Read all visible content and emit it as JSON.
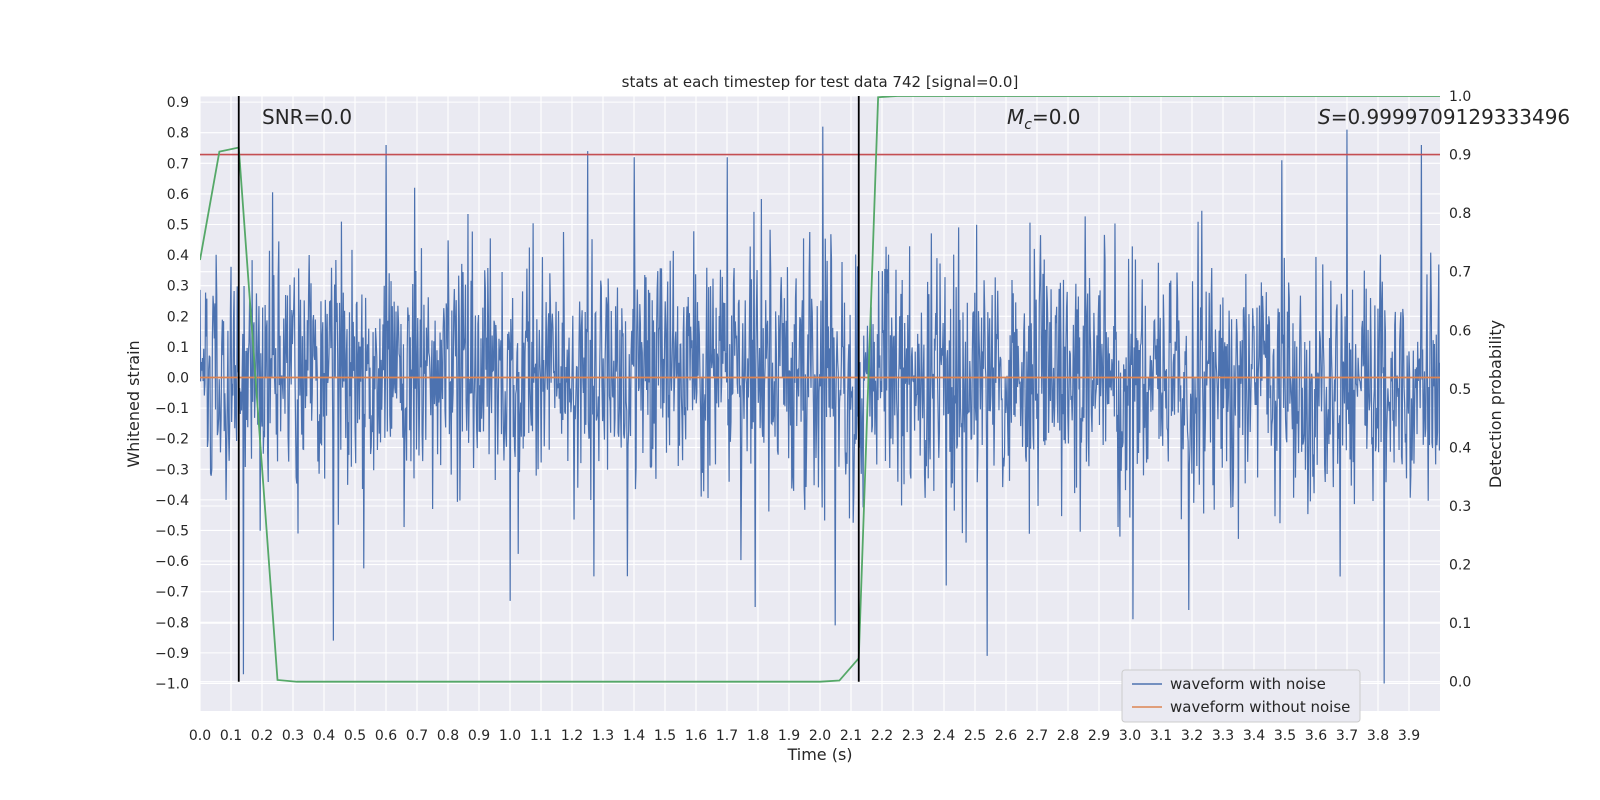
{
  "chart_data": {
    "type": "line",
    "title": "stats at each timestep for test data 742 [signal=0.0]",
    "xlabel": "Time (s)",
    "ylabel": "Whitened strain",
    "y2label": "Detection probability",
    "xlim": [
      0.0,
      4.0
    ],
    "ylim": [
      -1.09,
      0.92
    ],
    "y2lim": [
      -0.05,
      1.0
    ],
    "xticks": [
      0.0,
      0.1,
      0.2,
      0.3,
      0.4,
      0.5,
      0.6,
      0.7,
      0.8,
      0.9,
      1.0,
      1.1,
      1.2,
      1.3,
      1.4,
      1.5,
      1.6,
      1.7,
      1.8,
      1.9,
      2.0,
      2.1,
      2.2,
      2.3,
      2.4,
      2.5,
      2.6,
      2.7,
      2.8,
      2.9,
      3.0,
      3.1,
      3.2,
      3.3,
      3.4,
      3.5,
      3.6,
      3.7,
      3.8,
      3.9
    ],
    "xtick_labels": [
      "0.0",
      "0.1",
      "0.2",
      "0.3",
      "0.4",
      "0.5",
      "0.6",
      "0.7",
      "0.8",
      "0.9",
      "1.0",
      "1.1",
      "1.2",
      "1.3",
      "1.4",
      "1.5",
      "1.6",
      "1.7",
      "1.8",
      "1.9",
      "2.0",
      "2.1",
      "2.2",
      "2.3",
      "2.4",
      "2.5",
      "2.6",
      "2.7",
      "2.8",
      "2.9",
      "3.0",
      "3.1",
      "3.2",
      "3.3",
      "3.4",
      "3.5",
      "3.6",
      "3.7",
      "3.8",
      "3.9"
    ],
    "yticks": [
      0.9,
      0.8,
      0.7,
      0.6,
      0.5,
      0.4,
      0.3,
      0.2,
      0.1,
      0.0,
      -0.1,
      -0.2,
      -0.3,
      -0.4,
      -0.5,
      -0.6,
      -0.7,
      -0.8,
      -0.9,
      -1.0
    ],
    "ytick_labels": [
      "0.9",
      "0.8",
      "0.7",
      "0.6",
      "0.5",
      "0.4",
      "0.3",
      "0.2",
      "0.1",
      "0.0",
      "−0.1",
      "−0.2",
      "−0.3",
      "−0.4",
      "−0.5",
      "−0.6",
      "−0.7",
      "−0.8",
      "−0.9",
      "−1.0"
    ],
    "y2ticks": [
      0.0,
      0.1,
      0.2,
      0.3,
      0.4,
      0.5,
      0.6,
      0.7,
      0.8,
      0.9,
      1.0
    ],
    "y2tick_labels": [
      "0.0",
      "0.1",
      "0.2",
      "0.3",
      "0.4",
      "0.5",
      "0.6",
      "0.7",
      "0.8",
      "0.9",
      "1.0"
    ],
    "series": [
      {
        "name": "waveform with noise",
        "axis": "left",
        "color": "#4c72b0",
        "kind": "noise",
        "n_points": 2000,
        "sigma": 0.2,
        "notable_peaks": [
          {
            "x": 0.14,
            "y": -0.97
          },
          {
            "x": 0.43,
            "y": -0.86
          },
          {
            "x": 0.6,
            "y": 0.76
          },
          {
            "x": 1.0,
            "y": -0.73
          },
          {
            "x": 1.25,
            "y": 0.74
          },
          {
            "x": 1.27,
            "y": -0.65
          },
          {
            "x": 1.4,
            "y": 0.72
          },
          {
            "x": 1.7,
            "y": 0.72
          },
          {
            "x": 1.79,
            "y": -0.75
          },
          {
            "x": 2.01,
            "y": 0.82
          },
          {
            "x": 2.05,
            "y": -0.81
          },
          {
            "x": 2.54,
            "y": -0.91
          },
          {
            "x": 3.01,
            "y": -0.79
          },
          {
            "x": 3.19,
            "y": -0.76
          },
          {
            "x": 3.49,
            "y": 0.71
          },
          {
            "x": 3.7,
            "y": 0.81
          },
          {
            "x": 3.82,
            "y": -1.0
          },
          {
            "x": 3.94,
            "y": 0.76
          }
        ]
      },
      {
        "name": "waveform without noise",
        "axis": "left",
        "color": "#dd8452",
        "x": [
          0.0,
          4.0
        ],
        "y": [
          0.0,
          0.0
        ]
      },
      {
        "name": "detection probability",
        "axis": "right",
        "color": "#55a868",
        "x": [
          0.0,
          0.0625,
          0.125,
          0.25,
          0.3125,
          2.0,
          2.0625,
          2.125,
          2.1875,
          2.25,
          4.0
        ],
        "y": [
          0.72,
          0.905,
          0.912,
          0.003,
          0.0,
          0.0,
          0.002,
          0.04,
          0.998,
          1.0,
          1.0
        ]
      }
    ],
    "hlines_right": [
      {
        "y": 0.9,
        "color": "#c44e52"
      }
    ],
    "vlines": [
      {
        "x": 0.125,
        "color": "#000000"
      },
      {
        "x": 2.125,
        "color": "#000000"
      }
    ],
    "annotations": {
      "snr": "SNR=0.0",
      "mc_symbol": "M",
      "mc_sub": "c",
      "mc_value": "=0.0",
      "s_symbol": "S",
      "s_value": "=0.9999709129333496"
    },
    "legend": {
      "placement": "lower-right",
      "entries": [
        "waveform with noise",
        "waveform without noise"
      ]
    },
    "grid": true,
    "colors": {
      "plot_bg": "#eaeaf2",
      "grid": "#ffffff",
      "text": "#262626"
    }
  }
}
